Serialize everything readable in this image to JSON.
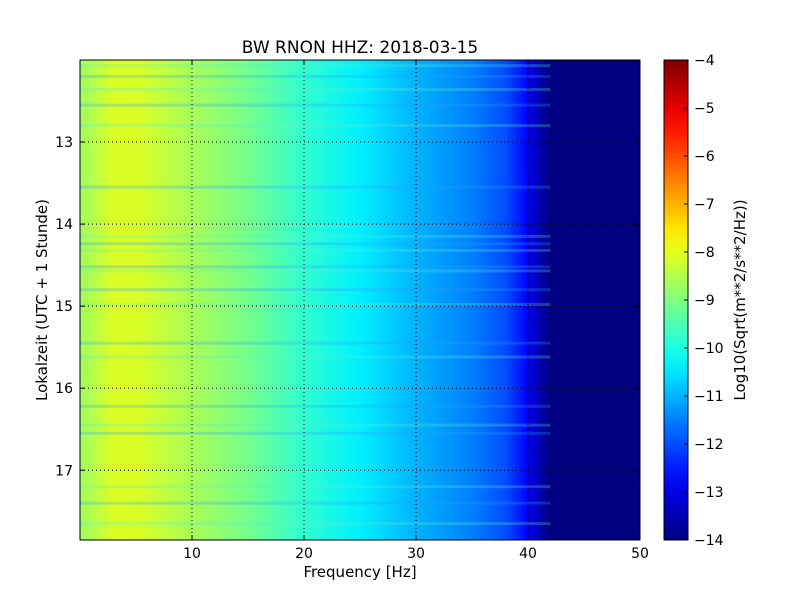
{
  "chart_data": {
    "type": "heatmap",
    "title": "BW RNON HHZ: 2018-03-15",
    "xlabel": "Frequency [Hz]",
    "ylabel": "Lokalzeit (UTC + 1 Stunde)",
    "xlim": [
      0,
      50
    ],
    "ylim": [
      17.85,
      12.0
    ],
    "xticks": [
      10,
      20,
      30,
      40,
      50
    ],
    "yticks": [
      13,
      14,
      15,
      16,
      17
    ],
    "grid": true,
    "colormap": "jet",
    "colorbar": {
      "label": "Log10(Sqrt(m**2/s**2/Hz))",
      "range": [
        -14,
        -4
      ],
      "ticks": [
        -4,
        -5,
        -6,
        -7,
        -8,
        -9,
        -10,
        -11,
        -12,
        -13,
        -14
      ]
    },
    "spectrum_profile": {
      "frequency_hz": [
        0,
        3,
        5,
        10,
        15,
        20,
        25,
        30,
        35,
        38,
        40,
        41,
        42,
        50
      ],
      "log_amplitude": [
        -8.7,
        -8.1,
        -8.1,
        -8.6,
        -9.1,
        -9.8,
        -10.4,
        -11.0,
        -11.5,
        -12.0,
        -12.8,
        -13.5,
        -14.0,
        -14.0
      ]
    },
    "band_hours": [
      12.07,
      12.2,
      12.36,
      12.55,
      12.8,
      13.55,
      14.15,
      14.24,
      14.32,
      14.52,
      14.57,
      14.8,
      14.98,
      15.45,
      15.62,
      16.22,
      16.45,
      16.55,
      17.2,
      17.4,
      17.65
    ]
  }
}
